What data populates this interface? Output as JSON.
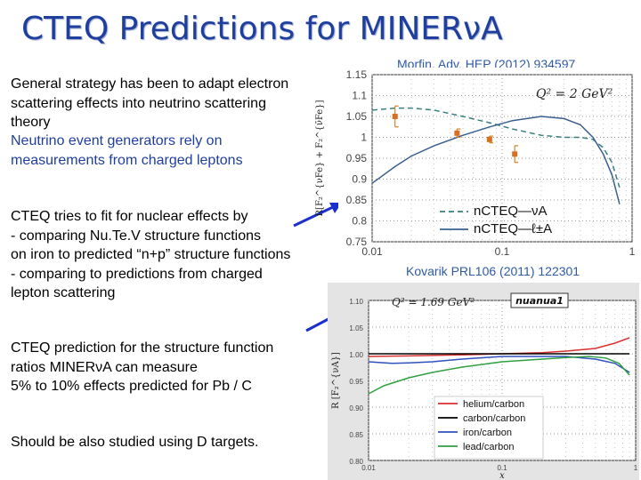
{
  "slide": {
    "title": "CTEQ Predictions for MINERνA",
    "paragraphs": [
      {
        "lines": [
          "General strategy has been to adapt electron",
          "scattering effects into neutrino scattering",
          "theory"
        ]
      },
      {
        "lines": [
          "Neutrino event generators rely on",
          "measurements from charged leptons"
        ]
      },
      {
        "lines": [
          "CTEQ tries to fit for nuclear effects by",
          "- comparing Nu.Te.V structure functions",
          "on iron to predicted “n+p” structure functions",
          "- comparing to predictions from charged",
          "lepton scattering"
        ]
      },
      {
        "lines": [
          "CTEQ prediction for the structure function",
          "ratios MINERνA can measure",
          "5% to 10% effects predicted for Pb / C"
        ]
      },
      {
        "lines": [
          "Should be also studied using D targets."
        ]
      }
    ],
    "citations": {
      "top": "Morfin, Adv. HEP (2012) 934597",
      "bottom": "Kovarik PRL106 (2011) 122301"
    }
  },
  "chart_data": [
    {
      "type": "line",
      "annotation": "Q² = 2 GeV²",
      "ylabel": "R[F₂^{νFe} + F₂^{ν̄Fe}]",
      "xscale": "log",
      "xlim": [
        0.01,
        1
      ],
      "ylim": [
        0.75,
        1.15
      ],
      "xticks": [
        "0.01",
        "0.1",
        "1"
      ],
      "yticks": [
        "1.15",
        "1.1",
        "1.05",
        "1",
        "0.95",
        "0.9",
        "0.85",
        "0.8",
        "0.75"
      ],
      "legend": [
        "nCTEQ—νA",
        "nCTEQ—ℓ±A"
      ],
      "series": [
        {
          "name": "nCTEQ—νA",
          "style": "dashed",
          "color": "#3a7f7f",
          "x": [
            0.01,
            0.015,
            0.02,
            0.03,
            0.05,
            0.08,
            0.12,
            0.2,
            0.3,
            0.4,
            0.5,
            0.6,
            0.7,
            0.8
          ],
          "y": [
            1.065,
            1.07,
            1.07,
            1.065,
            1.05,
            1.035,
            1.02,
            1.005,
            1.0,
            1.0,
            0.995,
            0.975,
            0.94,
            0.88
          ]
        },
        {
          "name": "nCTEQ—ℓ±A",
          "style": "solid",
          "color": "#3a5f8f",
          "x": [
            0.01,
            0.015,
            0.02,
            0.03,
            0.05,
            0.08,
            0.12,
            0.2,
            0.3,
            0.4,
            0.5,
            0.6,
            0.7,
            0.8
          ],
          "y": [
            0.89,
            0.93,
            0.955,
            0.98,
            1.005,
            1.025,
            1.04,
            1.05,
            1.045,
            1.03,
            1.0,
            0.96,
            0.91,
            0.84
          ]
        }
      ],
      "points": [
        {
          "x": 0.015,
          "y": 1.05,
          "err": 0.025
        },
        {
          "x": 0.045,
          "y": 1.01,
          "err": 0.01
        },
        {
          "x": 0.08,
          "y": 0.995,
          "err": 0.008
        },
        {
          "x": 0.125,
          "y": 0.96,
          "err": 0.02
        }
      ]
    },
    {
      "type": "line",
      "annotation": "Q² = 1.69 GeV²",
      "tag": "nuanua1",
      "ylabel": "R [F₂^{νA}]",
      "xlabel": "x",
      "xscale": "log",
      "xlim": [
        0.01,
        1
      ],
      "ylim": [
        0.8,
        1.1
      ],
      "xticks": [
        "0.01",
        "0.1",
        "1"
      ],
      "yticks": [
        "1.10",
        "1.05",
        "1.00",
        "0.95",
        "0.90",
        "0.85",
        "0.80"
      ],
      "legend": [
        "helium/carbon",
        "carbon/carbon",
        "iron/carbon",
        "lead/carbon"
      ],
      "series": [
        {
          "name": "helium/carbon",
          "color": "#d93030",
          "x": [
            0.01,
            0.02,
            0.05,
            0.1,
            0.2,
            0.3,
            0.5,
            0.7,
            0.9
          ],
          "y": [
            0.995,
            0.996,
            0.998,
            1.0,
            1.002,
            1.005,
            1.01,
            1.02,
            1.03
          ]
        },
        {
          "name": "carbon/carbon",
          "color": "#000000",
          "x": [
            0.01,
            0.9
          ],
          "y": [
            1.0,
            1.0
          ]
        },
        {
          "name": "iron/carbon",
          "color": "#3050c0",
          "x": [
            0.01,
            0.015,
            0.02,
            0.03,
            0.05,
            0.1,
            0.2,
            0.3,
            0.5,
            0.7,
            0.9
          ],
          "y": [
            0.985,
            0.982,
            0.983,
            0.985,
            0.99,
            0.995,
            0.995,
            0.995,
            0.99,
            0.982,
            0.965
          ]
        },
        {
          "name": "lead/carbon",
          "color": "#30a040",
          "x": [
            0.01,
            0.013,
            0.02,
            0.03,
            0.05,
            0.1,
            0.2,
            0.3,
            0.45,
            0.6,
            0.75,
            0.9
          ],
          "y": [
            0.925,
            0.94,
            0.955,
            0.965,
            0.975,
            0.985,
            0.99,
            0.993,
            0.995,
            0.992,
            0.982,
            0.96
          ]
        }
      ]
    }
  ]
}
